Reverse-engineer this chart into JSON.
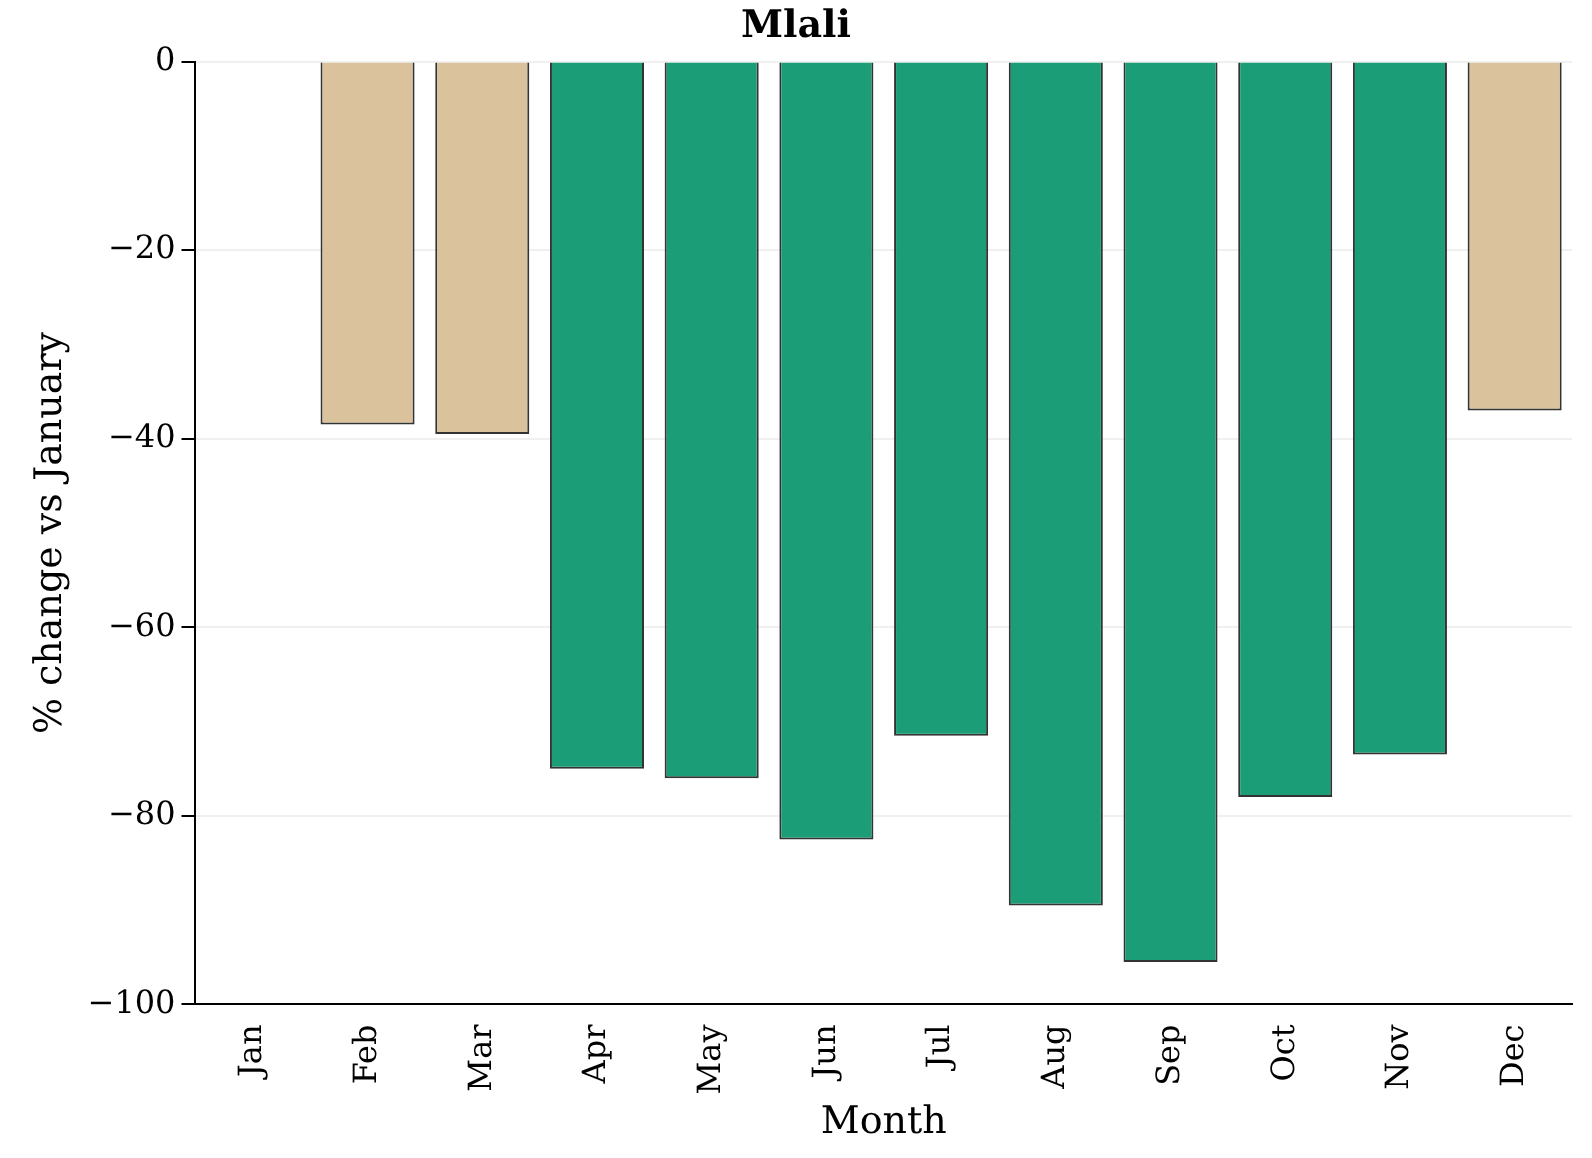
{
  "chart_data": {
    "type": "bar",
    "title": "Mlali",
    "xlabel": "Month",
    "ylabel": "% change vs January",
    "categories": [
      "Jan",
      "Feb",
      "Mar",
      "Apr",
      "May",
      "Jun",
      "Jul",
      "Aug",
      "Sep",
      "Oct",
      "Nov",
      "Dec"
    ],
    "values": [
      0,
      -38.5,
      -39.5,
      -75,
      -76,
      -82.5,
      -71.5,
      -89.5,
      -95.5,
      -78,
      -73.5,
      -37
    ],
    "colors": [
      "#d9c29c",
      "#d9c29c",
      "#d9c29c",
      "#1b9e77",
      "#1b9e77",
      "#1b9e77",
      "#1b9e77",
      "#1b9e77",
      "#1b9e77",
      "#1b9e77",
      "#1b9e77",
      "#d9c29c"
    ],
    "ylim": [
      -100,
      0
    ],
    "yticks": [
      -100,
      -80,
      -60,
      -40,
      -20,
      0
    ],
    "grid": "y",
    "legend": false
  }
}
